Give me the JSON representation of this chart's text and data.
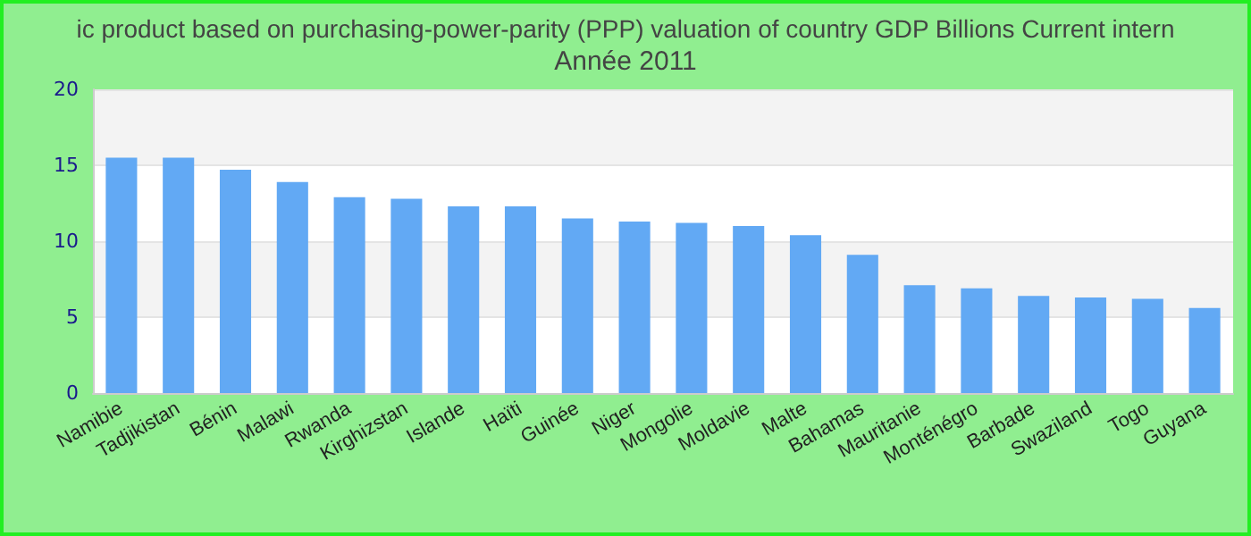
{
  "chart_data": {
    "type": "bar",
    "title": "ic product based on purchasing-power-parity (PPP) valuation of country GDP Billions Current intern",
    "subtitle": "Année 2011",
    "categories": [
      "Namibie",
      "Tadjikistan",
      "Bénin",
      "Malawi",
      "Rwanda",
      "Kirghizstan",
      "Islande",
      "Haïti",
      "Guinée",
      "Niger",
      "Mongolie",
      "Moldavie",
      "Malte",
      "Bahamas",
      "Mauritanie",
      "Monténégro",
      "Barbade",
      "Swaziland",
      "Togo",
      "Guyana"
    ],
    "values": [
      15.5,
      15.5,
      14.7,
      13.9,
      12.9,
      12.8,
      12.3,
      12.3,
      11.5,
      11.3,
      11.2,
      11.0,
      10.4,
      9.1,
      7.1,
      6.9,
      6.4,
      6.3,
      6.2,
      5.6
    ],
    "color": "#62a9f4",
    "ylim": [
      0,
      20
    ],
    "yticks": [
      0,
      5,
      10,
      15,
      20
    ],
    "grid": "y"
  }
}
